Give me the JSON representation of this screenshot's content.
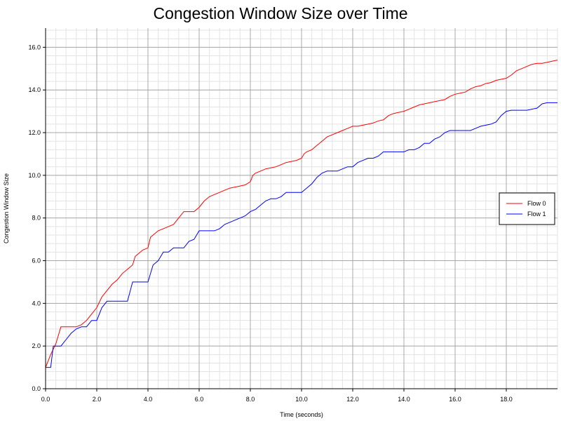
{
  "chart_data": {
    "type": "line",
    "title": "Congestion Window Size over Time",
    "xlabel": "Time (seconds)",
    "ylabel": "Congestion Window Size",
    "xlim": [
      0,
      20
    ],
    "ylim": [
      0,
      16.9
    ],
    "x_ticks": [
      0,
      2,
      4,
      6,
      8,
      10,
      12,
      14,
      16,
      18
    ],
    "x_tick_labels": [
      "0.0",
      "2.0",
      "4.0",
      "6.0",
      "8.0",
      "10.0",
      "12.0",
      "14.0",
      "16.0",
      "18.0"
    ],
    "y_ticks": [
      0,
      2,
      4,
      6,
      8,
      10,
      12,
      14,
      16
    ],
    "y_tick_labels": [
      "0.0",
      "2.0",
      "4.0",
      "6.0",
      "8.0",
      "10.0",
      "12.0",
      "14.0",
      "16.0"
    ],
    "minor_x_step": 0.4,
    "minor_y_step": 0.4,
    "grid": true,
    "legend_position": "right",
    "series": [
      {
        "name": "Flow 0",
        "color": "#ff0000",
        "x": [
          0,
          0.2,
          0.4,
          0.6,
          0.8,
          1.0,
          1.2,
          1.4,
          1.6,
          1.8,
          2.0,
          2.2,
          2.4,
          2.6,
          2.8,
          3.0,
          3.2,
          3.4,
          3.5,
          3.6,
          3.8,
          4.0,
          4.1,
          4.2,
          4.4,
          4.6,
          4.8,
          5.0,
          5.2,
          5.4,
          5.6,
          5.8,
          6.0,
          6.2,
          6.4,
          6.6,
          6.8,
          7.0,
          7.2,
          7.4,
          7.6,
          7.8,
          8.0,
          8.1,
          8.2,
          8.4,
          8.6,
          8.8,
          9.0,
          9.2,
          9.4,
          9.6,
          9.8,
          10.0,
          10.1,
          10.2,
          10.4,
          10.6,
          10.8,
          11.0,
          11.2,
          11.4,
          11.6,
          11.8,
          12.0,
          12.2,
          12.4,
          12.6,
          12.8,
          13.0,
          13.2,
          13.4,
          13.6,
          13.8,
          14.0,
          14.2,
          14.4,
          14.6,
          14.8,
          15.0,
          15.2,
          15.4,
          15.6,
          15.8,
          16.0,
          16.2,
          16.4,
          16.6,
          16.8,
          17.0,
          17.2,
          17.4,
          17.6,
          17.8,
          18.0,
          18.2,
          18.4,
          18.6,
          18.8,
          19.0,
          19.2,
          19.4,
          19.6,
          19.8,
          20.0
        ],
        "values": [
          1.0,
          1.6,
          2.1,
          2.9,
          2.9,
          2.9,
          2.9,
          3.0,
          3.2,
          3.5,
          3.8,
          4.3,
          4.6,
          4.9,
          5.1,
          5.4,
          5.6,
          5.8,
          6.2,
          6.3,
          6.5,
          6.6,
          7.1,
          7.2,
          7.4,
          7.5,
          7.6,
          7.7,
          8.0,
          8.3,
          8.3,
          8.3,
          8.5,
          8.8,
          9.0,
          9.1,
          9.2,
          9.3,
          9.4,
          9.45,
          9.5,
          9.55,
          9.7,
          10.0,
          10.1,
          10.2,
          10.3,
          10.35,
          10.4,
          10.5,
          10.6,
          10.65,
          10.7,
          10.8,
          11.0,
          11.1,
          11.2,
          11.4,
          11.6,
          11.8,
          11.9,
          12.0,
          12.1,
          12.2,
          12.3,
          12.3,
          12.35,
          12.4,
          12.45,
          12.55,
          12.6,
          12.8,
          12.9,
          12.95,
          13.0,
          13.1,
          13.2,
          13.3,
          13.35,
          13.4,
          13.45,
          13.5,
          13.55,
          13.7,
          13.8,
          13.85,
          13.9,
          14.05,
          14.15,
          14.2,
          14.3,
          14.35,
          14.45,
          14.5,
          14.55,
          14.7,
          14.9,
          15.0,
          15.1,
          15.2,
          15.25,
          15.25,
          15.3,
          15.35,
          15.4
        ]
      },
      {
        "name": "Flow 1",
        "color": "#0000ff",
        "x": [
          0,
          0.2,
          0.3,
          0.4,
          0.6,
          0.8,
          1.0,
          1.2,
          1.4,
          1.6,
          1.8,
          2.0,
          2.2,
          2.4,
          2.6,
          2.8,
          3.0,
          3.2,
          3.4,
          3.6,
          3.8,
          4.0,
          4.2,
          4.4,
          4.6,
          4.8,
          5.0,
          5.2,
          5.4,
          5.6,
          5.8,
          6.0,
          6.2,
          6.4,
          6.6,
          6.8,
          7.0,
          7.2,
          7.4,
          7.6,
          7.8,
          8.0,
          8.2,
          8.4,
          8.6,
          8.8,
          9.0,
          9.2,
          9.4,
          9.6,
          9.8,
          10.0,
          10.2,
          10.4,
          10.6,
          10.8,
          11.0,
          11.2,
          11.4,
          11.6,
          11.8,
          12.0,
          12.2,
          12.4,
          12.6,
          12.8,
          13.0,
          13.2,
          13.4,
          13.6,
          13.8,
          14.0,
          14.2,
          14.4,
          14.6,
          14.8,
          15.0,
          15.2,
          15.4,
          15.6,
          15.8,
          16.0,
          16.2,
          16.4,
          16.6,
          16.8,
          17.0,
          17.2,
          17.4,
          17.6,
          17.8,
          18.0,
          18.2,
          18.4,
          18.6,
          18.8,
          19.0,
          19.2,
          19.4,
          19.6,
          19.8,
          20.0
        ],
        "values": [
          1.0,
          1.0,
          2.0,
          2.0,
          2.0,
          2.3,
          2.6,
          2.8,
          2.9,
          2.9,
          3.2,
          3.2,
          3.8,
          4.1,
          4.1,
          4.1,
          4.1,
          4.1,
          5.0,
          5.0,
          5.0,
          5.0,
          5.8,
          6.0,
          6.4,
          6.4,
          6.6,
          6.6,
          6.6,
          6.9,
          7.0,
          7.4,
          7.4,
          7.4,
          7.4,
          7.5,
          7.7,
          7.8,
          7.9,
          8.0,
          8.1,
          8.3,
          8.4,
          8.6,
          8.8,
          8.9,
          8.9,
          9.0,
          9.2,
          9.2,
          9.2,
          9.2,
          9.4,
          9.6,
          9.9,
          10.1,
          10.2,
          10.2,
          10.2,
          10.3,
          10.4,
          10.4,
          10.6,
          10.7,
          10.8,
          10.8,
          10.9,
          11.1,
          11.1,
          11.1,
          11.1,
          11.1,
          11.2,
          11.2,
          11.3,
          11.5,
          11.5,
          11.7,
          11.8,
          12.0,
          12.1,
          12.1,
          12.1,
          12.1,
          12.1,
          12.2,
          12.3,
          12.35,
          12.4,
          12.5,
          12.8,
          13.0,
          13.05,
          13.05,
          13.05,
          13.05,
          13.1,
          13.15,
          13.35,
          13.4,
          13.4,
          13.4
        ]
      }
    ]
  }
}
